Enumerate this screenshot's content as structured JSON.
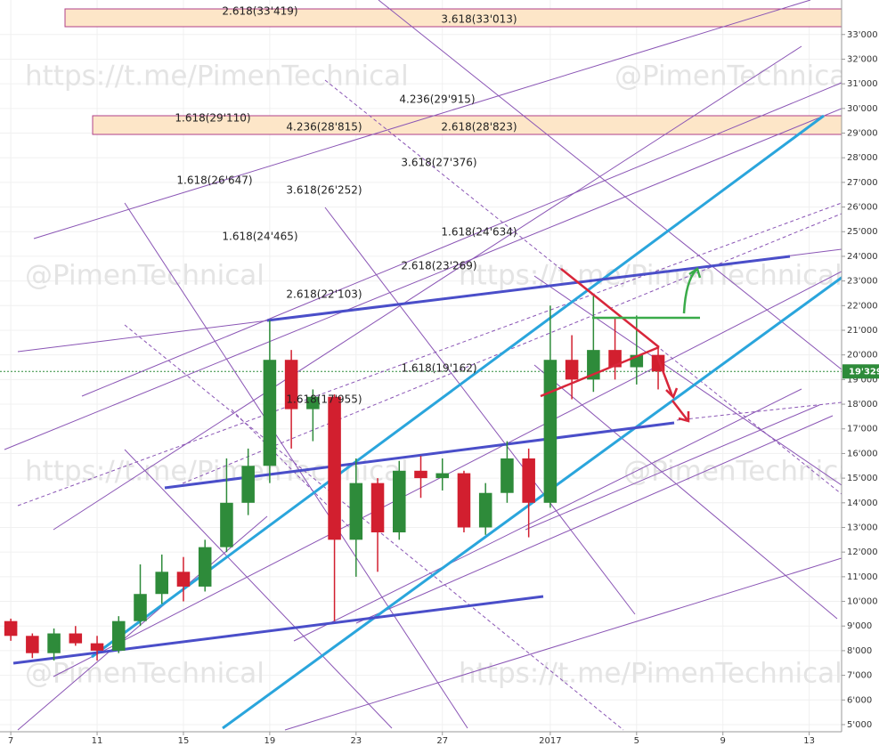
{
  "chart_data": {
    "type": "candlestick",
    "x": [
      0,
      1,
      2,
      3,
      4,
      5,
      6,
      7,
      8,
      9,
      10,
      11,
      12,
      13,
      14,
      15,
      16,
      17,
      18,
      19,
      20,
      21,
      22,
      23,
      24,
      25,
      26,
      27,
      28,
      29,
      30
    ],
    "open": [
      9200,
      8600,
      7900,
      8700,
      8300,
      8000,
      9200,
      10300,
      11200,
      10600,
      12200,
      14000,
      15500,
      19800,
      17800,
      18300,
      12500,
      14800,
      12800,
      15300,
      15000,
      15200,
      13000,
      14400,
      15800,
      14000,
      19800,
      19000,
      20200,
      19500,
      20000
    ],
    "high": [
      9300,
      8700,
      8900,
      9000,
      8600,
      9400,
      11500,
      11900,
      11800,
      12500,
      15800,
      16200,
      21400,
      20200,
      18600,
      18400,
      15800,
      15000,
      15700,
      15900,
      15800,
      15300,
      14800,
      16500,
      16200,
      22000,
      20800,
      22400,
      21500,
      21600,
      20300
    ],
    "low": [
      8400,
      7700,
      7600,
      8200,
      7600,
      7900,
      9000,
      9900,
      10000,
      10400,
      12000,
      13500,
      14800,
      16200,
      16500,
      9200,
      11000,
      11200,
      12500,
      14200,
      14500,
      12800,
      12700,
      14000,
      12600,
      13800,
      18200,
      18500,
      19000,
      18800,
      18600
    ],
    "close": [
      8600,
      7900,
      8700,
      8300,
      8000,
      9200,
      10300,
      11200,
      10600,
      12200,
      14000,
      15500,
      19800,
      17800,
      18300,
      12500,
      14800,
      12800,
      15300,
      15000,
      15200,
      13000,
      14400,
      15800,
      14000,
      19800,
      19000,
      20200,
      19500,
      20000,
      19329
    ],
    "up_color": "#2e8b3a",
    "down_color": "#d21f2f",
    "xlim": [
      -0.5,
      38.5
    ],
    "xticks": [
      {
        "value": 0,
        "label": "7"
      },
      {
        "value": 4,
        "label": "11"
      },
      {
        "value": 8,
        "label": "15"
      },
      {
        "value": 12,
        "label": "19"
      },
      {
        "value": 16,
        "label": "23"
      },
      {
        "value": 20,
        "label": "27"
      },
      {
        "value": 25,
        "label": "2017"
      },
      {
        "value": 29,
        "label": "5"
      },
      {
        "value": 33,
        "label": "9"
      },
      {
        "value": 37,
        "label": "13"
      }
    ],
    "ylim": [
      4710,
      34400
    ],
    "yticks": [
      {
        "value": 5000,
        "label": "5'000"
      },
      {
        "value": 6000,
        "label": "6'000"
      },
      {
        "value": 7000,
        "label": "7'000"
      },
      {
        "value": 8000,
        "label": "8'000"
      },
      {
        "value": 9000,
        "label": "9'000"
      },
      {
        "value": 10000,
        "label": "10'000"
      },
      {
        "value": 11000,
        "label": "11'000"
      },
      {
        "value": 12000,
        "label": "12'000"
      },
      {
        "value": 13000,
        "label": "13'000"
      },
      {
        "value": 14000,
        "label": "14'000"
      },
      {
        "value": 15000,
        "label": "15'000"
      },
      {
        "value": 16000,
        "label": "16'000"
      },
      {
        "value": 17000,
        "label": "17'000"
      },
      {
        "value": 18000,
        "label": "18'000"
      },
      {
        "value": 19000,
        "label": "19'000"
      },
      {
        "value": 20000,
        "label": "20'000"
      },
      {
        "value": 21000,
        "label": "21'000"
      },
      {
        "value": 22000,
        "label": "22'000"
      },
      {
        "value": 23000,
        "label": "23'000"
      },
      {
        "value": 24000,
        "label": "24'000"
      },
      {
        "value": 25000,
        "label": "25'000"
      },
      {
        "value": 26000,
        "label": "26'000"
      },
      {
        "value": 27000,
        "label": "27'000"
      },
      {
        "value": 28000,
        "label": "28'000"
      },
      {
        "value": 29000,
        "label": "29'000"
      },
      {
        "value": 30000,
        "label": "30'000"
      },
      {
        "value": 31000,
        "label": "31'000"
      },
      {
        "value": 32000,
        "label": "32'000"
      },
      {
        "value": 33000,
        "label": "33'000"
      }
    ],
    "grid": true,
    "last_price": {
      "value": 19329,
      "label": "19'329"
    },
    "last_price_color": "#2e8b3a"
  },
  "fib_labels": [
    "2.618(33'419)",
    "3.618(33'013)",
    "4.236(29'915)",
    "1.618(29'110)",
    "4.236(28'815)",
    "2.618(28'823)",
    "3.618(27'376)",
    "1.618(26'647)",
    "3.618(26'252)",
    "1.618(24'465)",
    "1.618(24'634)",
    "2.618(23'269)",
    "2.618(22'103)",
    "1.618(19'162)",
    "1.618(17'955)"
  ],
  "watermarks": [
    "https://t.me/PimenTechnical",
    "@PimenTechnical",
    "@PimenTechnical",
    "https://t.me/PimenTechnical",
    "https://t.me/PimenTechnical",
    "@PimenTechnical",
    "@PimenTechnical",
    "https://t.me/PimenTechnical"
  ]
}
